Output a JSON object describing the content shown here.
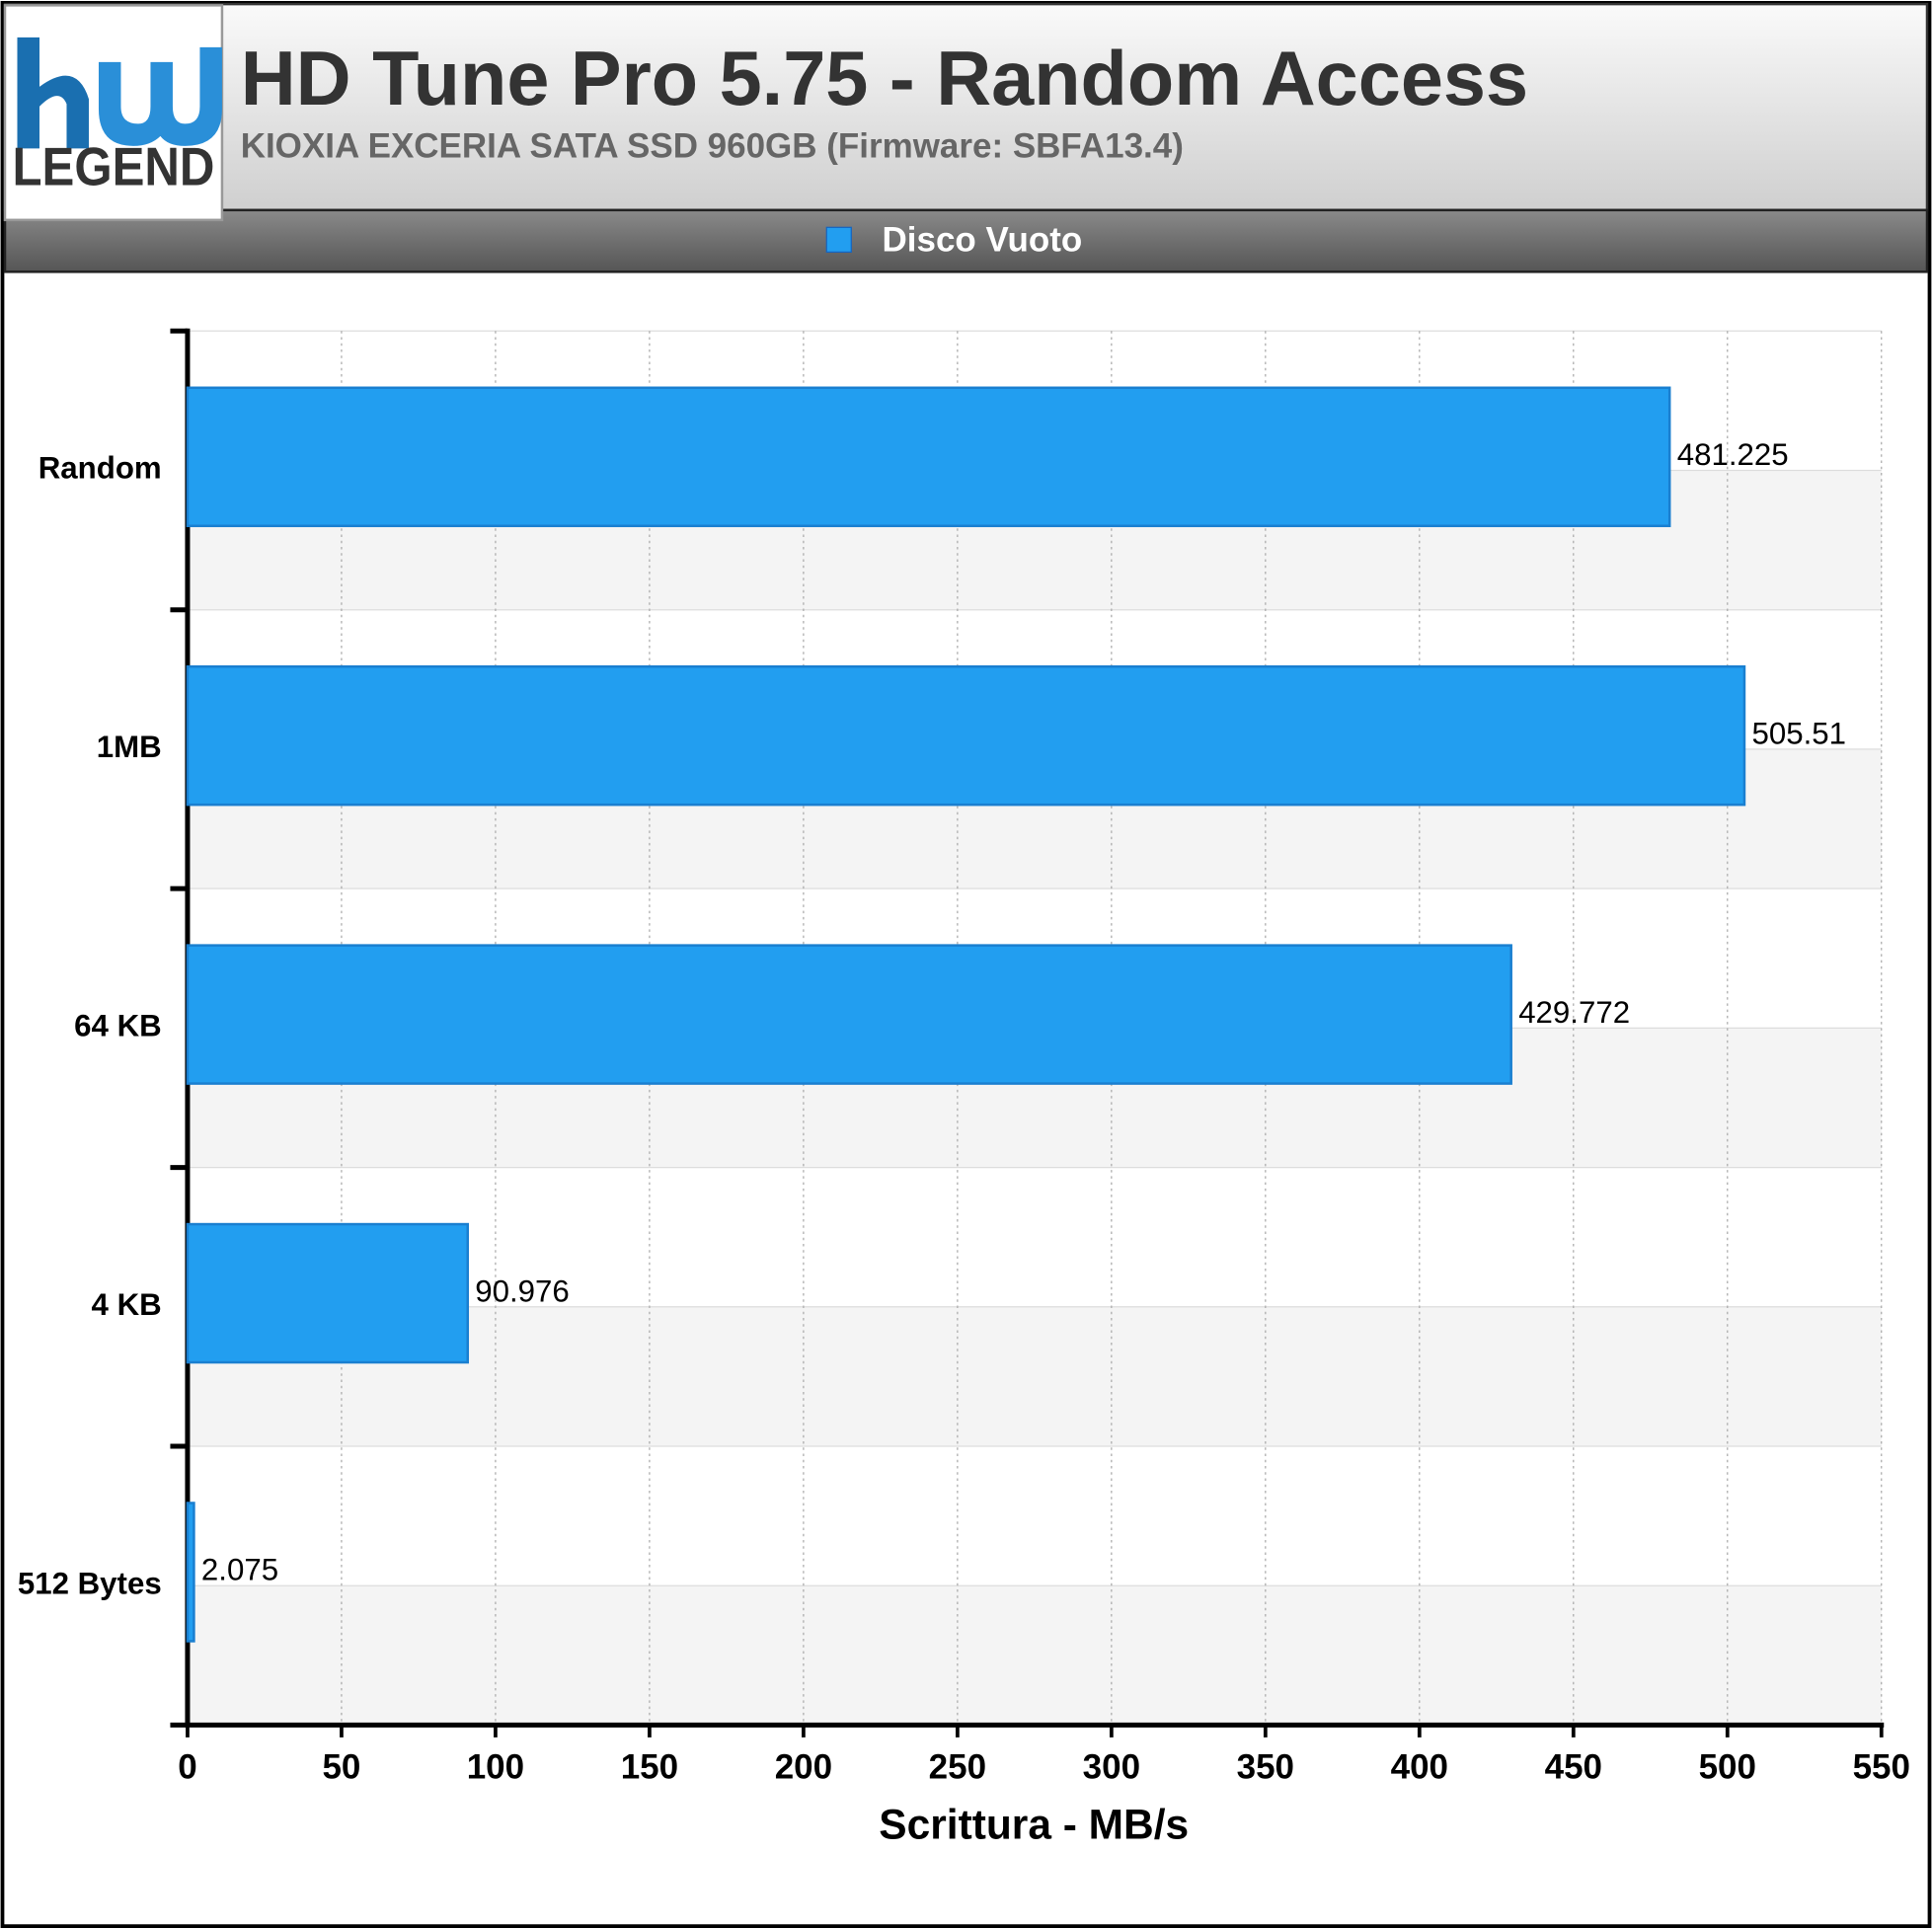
{
  "logo": {
    "text": "LEGEND"
  },
  "chart_data": {
    "type": "hbar",
    "title": "HD Tune Pro 5.75 - Random Access",
    "subtitle": "KIOXIA EXCERIA SATA SSD 960GB (Firmware: SBFA13.4)",
    "x_label": "Scrittura - MB/s",
    "categories": [
      "Random",
      "1MB",
      "64 KB",
      "4 KB",
      "512 Bytes"
    ],
    "series": [
      {
        "name": "Disco Vuoto",
        "color": "#229ef0",
        "values": [
          481.225,
          505.51,
          429.772,
          90.976,
          2.075
        ]
      }
    ],
    "xlim": [
      0,
      550
    ],
    "xticks": [
      0,
      50,
      100,
      150,
      200,
      250,
      300,
      350,
      400,
      450,
      500,
      550
    ],
    "grid": true
  }
}
